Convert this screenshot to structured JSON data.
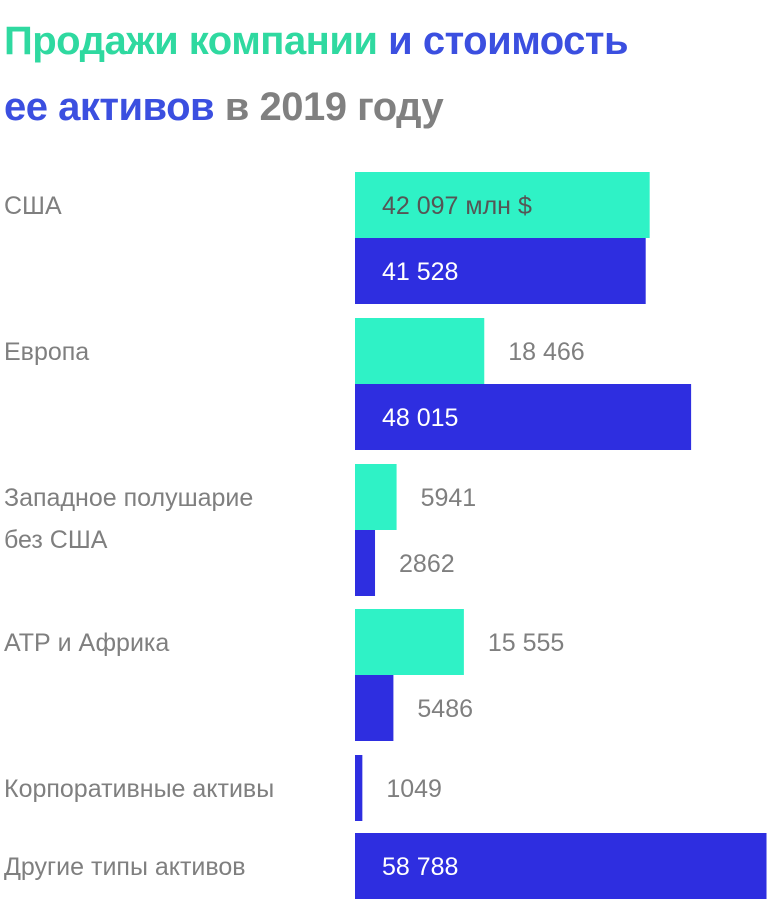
{
  "title": {
    "part1": "Продажи компании",
    "part2": "и стоимость",
    "part3": "ее активов",
    "part4": "в 2019 году"
  },
  "colors": {
    "sales": "#2ff2c6",
    "assets": "#2e2ee0",
    "title_green": "#2fd9a0",
    "title_blue": "#3b4fe0",
    "title_gray": "#808080",
    "label_gray": "#7f7f7f",
    "label_inside_sales": "#555555",
    "label_inside_assets": "#ffffff"
  },
  "chart_data": {
    "type": "bar",
    "orientation": "horizontal",
    "unit_label": "млн $",
    "categories": [
      "США",
      "Европа",
      "Западное полушарие без США",
      "АТР и Африка",
      "Корпоративные активы",
      "Другие типы активов"
    ],
    "category_lines": [
      [
        "США"
      ],
      [
        "Европа"
      ],
      [
        "Западное полушарие",
        "без США"
      ],
      [
        "АТР и Африка"
      ],
      [
        "Корпоративные активы"
      ],
      [
        "Другие типы активов"
      ]
    ],
    "series": [
      {
        "key": "sales",
        "values": [
          42097,
          18466,
          5941,
          15555,
          null,
          null
        ],
        "labels": [
          "42 097 млн $",
          "18 466",
          "5941",
          "15 555",
          null,
          null
        ]
      },
      {
        "key": "assets",
        "values": [
          41528,
          48015,
          2862,
          5486,
          1049,
          58788
        ],
        "labels": [
          "41 528",
          "48 015",
          "2862",
          "5486",
          "1049",
          "58 788"
        ]
      }
    ],
    "xlim": [
      0,
      59000
    ],
    "grid": false,
    "legend": "none"
  }
}
